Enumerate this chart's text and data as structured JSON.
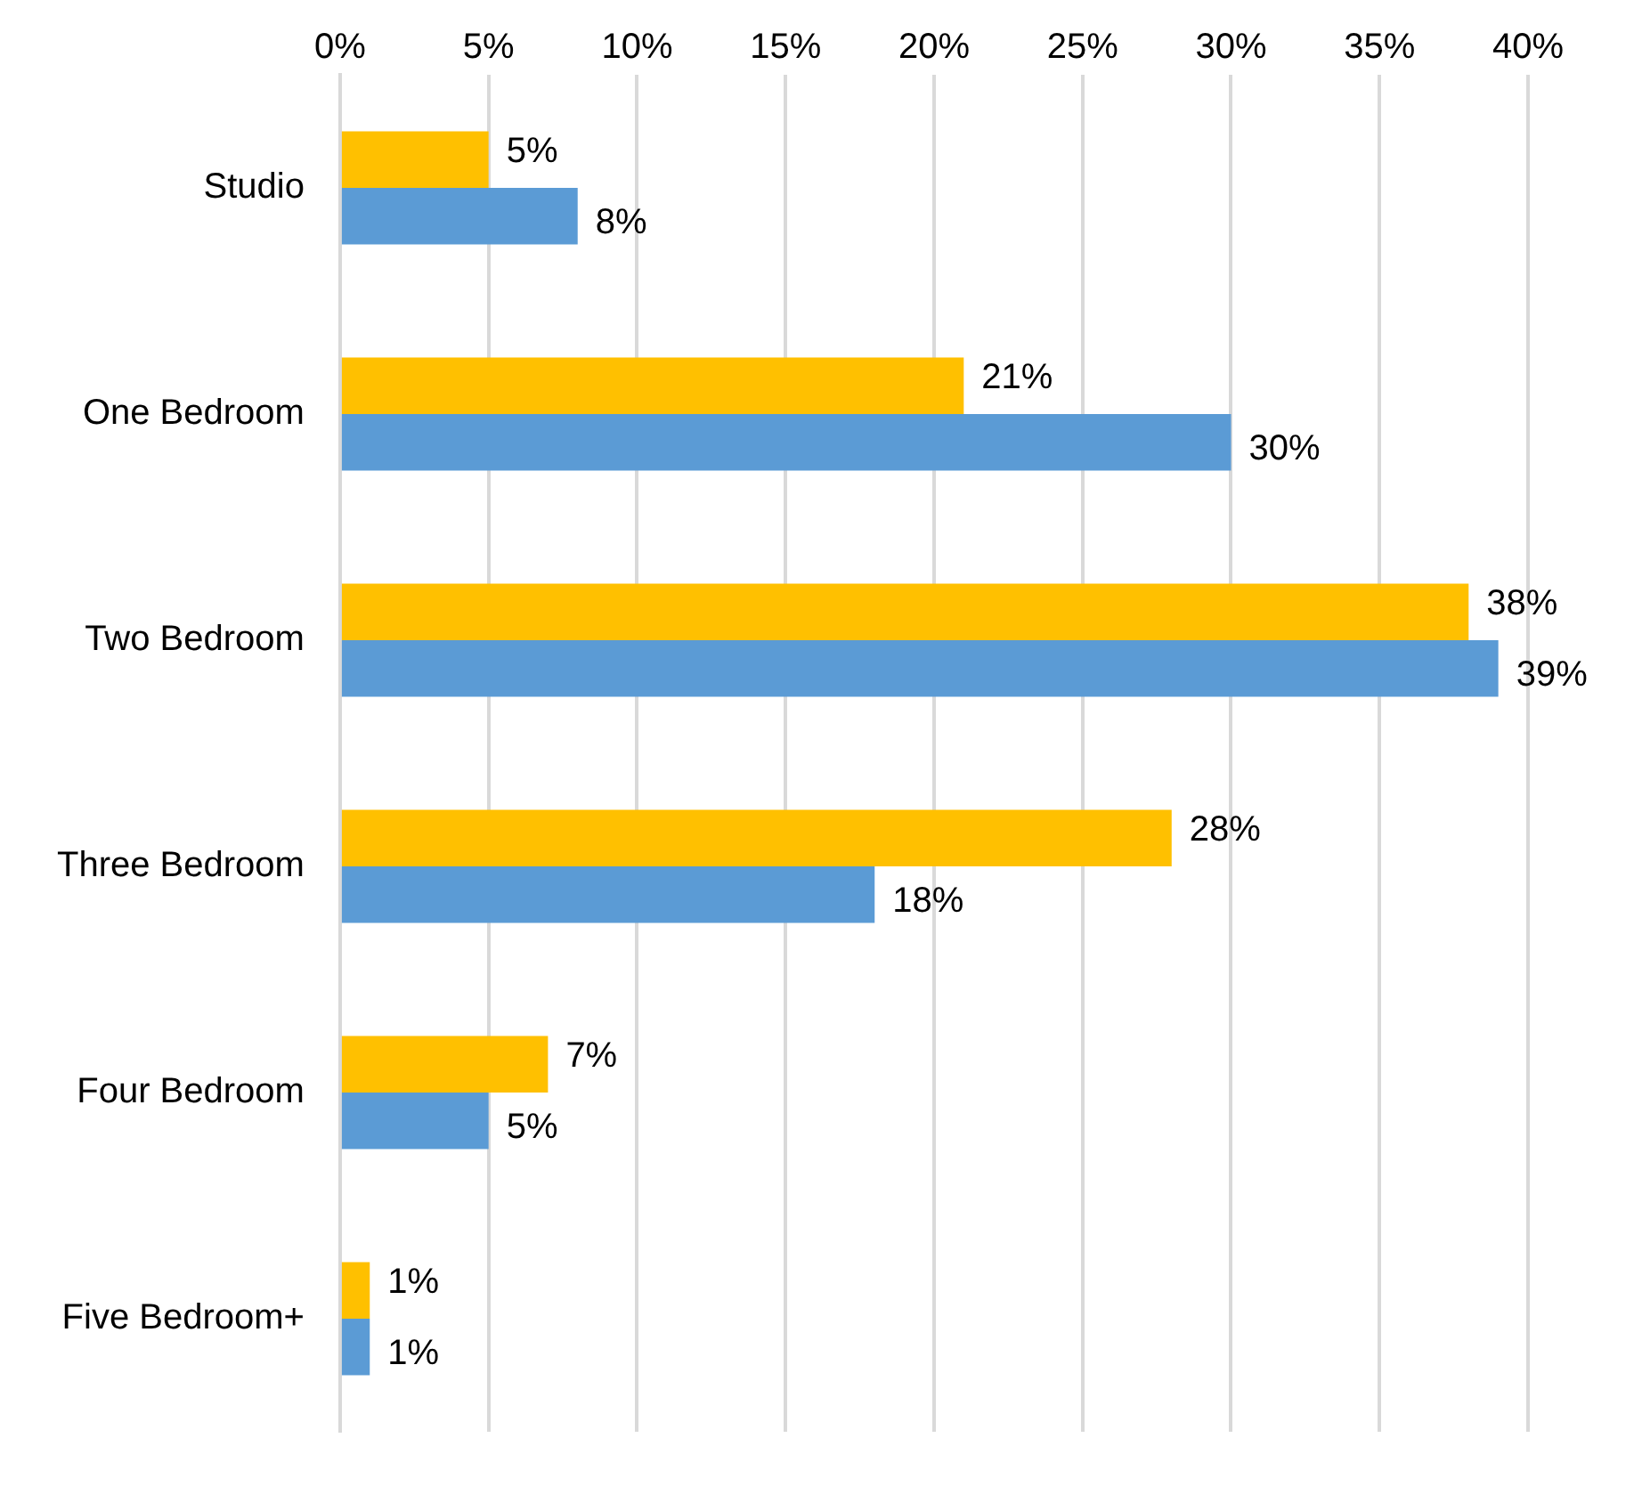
{
  "chart_data": {
    "type": "bar",
    "orientation": "horizontal",
    "categories": [
      "Studio",
      "One Bedroom",
      "Two Bedroom",
      "Three Bedroom",
      "Four Bedroom",
      "Five Bedroom+"
    ],
    "series": [
      {
        "color": "#ffc000",
        "values": [
          5,
          21,
          38,
          28,
          7,
          1
        ],
        "value_labels": [
          "5%",
          "21%",
          "38%",
          "28%",
          "7%",
          "1%"
        ]
      },
      {
        "color": "#5b9bd5",
        "values": [
          8,
          30,
          39,
          18,
          5,
          1
        ],
        "value_labels": [
          "8%",
          "30%",
          "39%",
          "18%",
          "5%",
          "1%"
        ]
      }
    ],
    "xlim": [
      0,
      40
    ],
    "xticks": [
      {
        "value": 0,
        "label": "0%"
      },
      {
        "value": 5,
        "label": "5%"
      },
      {
        "value": 10,
        "label": "10%"
      },
      {
        "value": 15,
        "label": "15%"
      },
      {
        "value": 20,
        "label": "20%"
      },
      {
        "value": 25,
        "label": "25%"
      },
      {
        "value": 30,
        "label": "30%"
      },
      {
        "value": 35,
        "label": "35%"
      },
      {
        "value": 40,
        "label": "40%"
      }
    ],
    "grid": "x",
    "legend": false
  }
}
